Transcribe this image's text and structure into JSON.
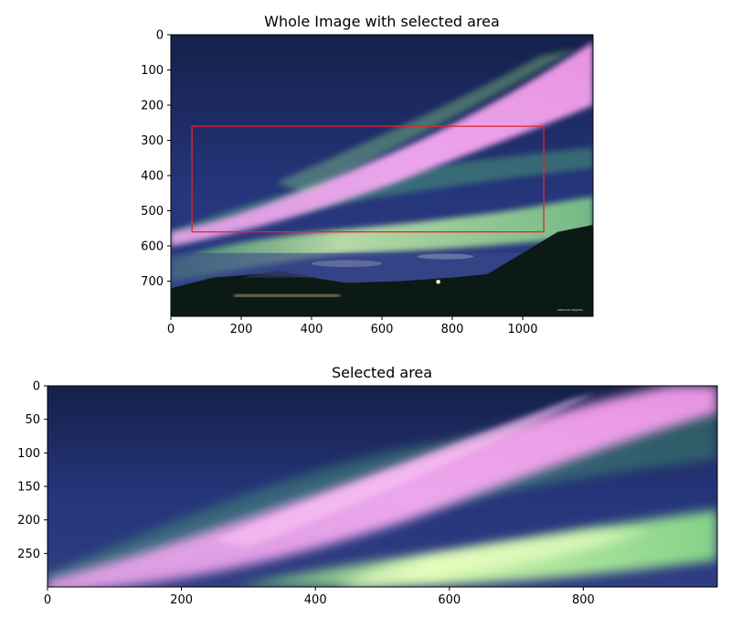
{
  "chart_data": [
    {
      "type": "image",
      "title": "Whole Image with selected area",
      "xlim": [
        0,
        1200
      ],
      "ylim": [
        800,
        0
      ],
      "xticks": [
        0,
        200,
        400,
        600,
        800,
        1000
      ],
      "yticks": [
        0,
        100,
        200,
        300,
        400,
        500,
        600,
        700
      ],
      "selection": {
        "x0": 60,
        "y0": 260,
        "x1": 1060,
        "y1": 560,
        "color": "#e3262b"
      },
      "signature_text": "GREGORY PRIJATEL"
    },
    {
      "type": "image",
      "title": "Selected area",
      "xlim": [
        0,
        1000
      ],
      "ylim": [
        300,
        0
      ],
      "xticks": [
        0,
        200,
        400,
        600,
        800
      ],
      "yticks": [
        0,
        50,
        100,
        150,
        200,
        250
      ]
    }
  ],
  "colors": {
    "sky_top": "#1a2452",
    "sky_mid": "#2a3a78",
    "aurora_pink": "#f09df0",
    "aurora_green": "#7fe07a",
    "aurora_yellow": "#e8ffb8",
    "ground": "#0d1a14",
    "frame": "#000000"
  }
}
